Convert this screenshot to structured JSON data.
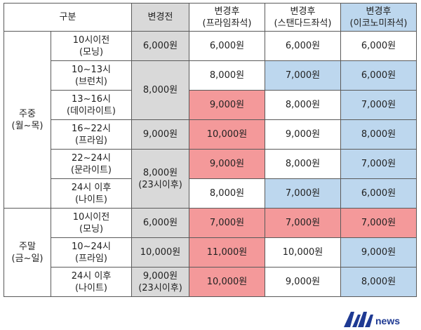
{
  "headers": {
    "category": "구분",
    "before": "변경전",
    "after_premium": [
      "변경후",
      "(프라임좌석)"
    ],
    "after_standard": [
      "변경후",
      "(스탠다드좌석)"
    ],
    "after_economy": [
      "변경후",
      "(이코노미좌석)"
    ]
  },
  "groups": {
    "weekday": [
      "주중",
      "(월~목)"
    ],
    "weekend": [
      "주말",
      "(금~일)"
    ]
  },
  "rows": [
    {
      "time": [
        "10시이전",
        "(모닝)"
      ],
      "premium": "6,000원",
      "standard": "6,000원",
      "economy": "6,000원"
    },
    {
      "time": [
        "10~13시",
        "(브런치)"
      ],
      "premium": "8,000원",
      "standard": "7,000원",
      "economy": "6,000원"
    },
    {
      "time": [
        "13~16시",
        "(데이라이트)"
      ],
      "premium": "9,000원",
      "standard": "8,000원",
      "economy": "7,000원"
    },
    {
      "time": [
        "16~22시",
        "(프라임)"
      ],
      "premium": "10,000원",
      "standard": "9,000원",
      "economy": "8,000원"
    },
    {
      "time": [
        "22~24시",
        "(문라이트)"
      ],
      "premium": "9,000원",
      "standard": "8,000원",
      "economy": "7,000원"
    },
    {
      "time": [
        "24시 이후",
        "(나이트)"
      ],
      "premium": "8,000원",
      "standard": "7,000원",
      "economy": "6,000원"
    },
    {
      "time": [
        "10시이전",
        "(모닝)"
      ],
      "premium": "7,000원",
      "standard": "7,000원",
      "economy": "7,000원"
    },
    {
      "time": [
        "10~24시",
        "(프라임)"
      ],
      "premium": "11,000원",
      "standard": "10,000원",
      "economy": "9,000원"
    },
    {
      "time": [
        "24시 이후",
        "(나이트)"
      ],
      "premium": "10,000원",
      "standard": "9,000원",
      "economy": "8,000원"
    }
  ],
  "before_prices": {
    "r0": "6,000원",
    "r1_r2": "8,000원",
    "r3": "9,000원",
    "r4_r5": [
      "8,000원",
      "(23시이후)"
    ],
    "r6": "6,000원",
    "r7": "10,000원",
    "r8": [
      "9,000원",
      "(23시이후)"
    ]
  },
  "logo": {
    "text": "news",
    "icon": "ann-logo-icon"
  },
  "colors": {
    "gray": "#d9d9d9",
    "red": "#f4999a",
    "blue": "#bdd7ee",
    "logo": "#1f3a93"
  }
}
